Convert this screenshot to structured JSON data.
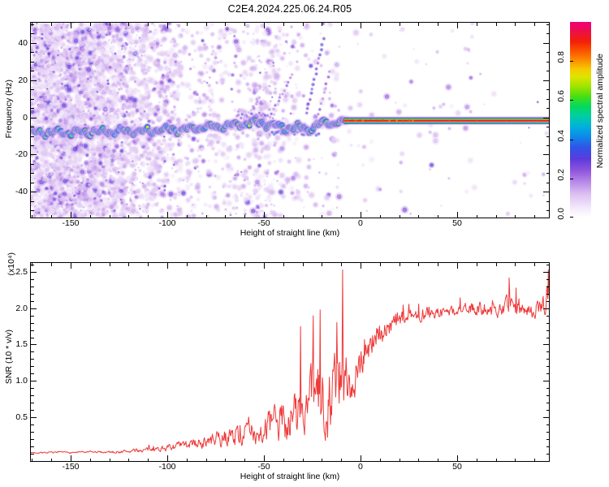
{
  "title": "C2E4.2024.225.06.24.R05",
  "colors": {
    "background": "#ffffff",
    "axis": "#000000",
    "snr_line": "#ee3a3a",
    "colormap_stops": [
      [
        0.0,
        "#ffffff"
      ],
      [
        0.05,
        "#f3e9fb"
      ],
      [
        0.12,
        "#dcc0f2"
      ],
      [
        0.18,
        "#b98ae8"
      ],
      [
        0.24,
        "#9055dd"
      ],
      [
        0.3,
        "#5b3bdd"
      ],
      [
        0.36,
        "#2f55e8"
      ],
      [
        0.42,
        "#0b8fe8"
      ],
      [
        0.47,
        "#00b4d8"
      ],
      [
        0.52,
        "#00cf9f"
      ],
      [
        0.57,
        "#06d95a"
      ],
      [
        0.62,
        "#4ade12"
      ],
      [
        0.67,
        "#9fe400"
      ],
      [
        0.72,
        "#dfe400"
      ],
      [
        0.76,
        "#f8c800"
      ],
      [
        0.8,
        "#fb9200"
      ],
      [
        0.85,
        "#fb5500"
      ],
      [
        0.9,
        "#f32008"
      ],
      [
        0.95,
        "#ee0f45"
      ],
      [
        1.0,
        "#f1007b"
      ]
    ]
  },
  "colorbar": {
    "label": "Normalized spectral amplitude",
    "ticks": [
      0.0,
      0.2,
      0.4,
      0.6,
      0.8
    ],
    "tick_labels": [
      "0.0",
      "0.2",
      "0.4",
      "0.6",
      "0.8"
    ],
    "range": [
      0,
      1
    ]
  },
  "chart_data": [
    {
      "type": "heatmap",
      "name": "spectrogram",
      "xlabel": "Height of straight line (km)",
      "ylabel": "Frequency (Hz)",
      "xlim": [
        -170.6,
        97.5
      ],
      "ylim": [
        -53.8,
        50.8
      ],
      "xticks": {
        "major": [
          -150,
          -100,
          -50,
          0,
          50
        ],
        "labels": [
          "-150",
          "-100",
          "-50",
          "0",
          "50"
        ],
        "minor_step": 10
      },
      "yticks": {
        "major": [
          40,
          20,
          0,
          -20,
          -40
        ],
        "labels": [
          "40",
          "20",
          "0",
          "-20",
          "-40"
        ],
        "minor_step": 5
      },
      "trace_points_km_hz_amp": [
        [
          -170.5,
          -8.2,
          0.72
        ],
        [
          -165,
          -8.0,
          0.62
        ],
        [
          -160,
          -8.3,
          0.66
        ],
        [
          -155,
          -8.0,
          0.7
        ],
        [
          -150,
          -8.4,
          0.6
        ],
        [
          -145,
          -8.1,
          0.56
        ],
        [
          -140,
          -7.8,
          0.66
        ],
        [
          -135,
          -8.0,
          0.6
        ],
        [
          -130,
          -7.6,
          0.7
        ],
        [
          -125,
          -7.8,
          0.6
        ],
        [
          -120,
          -7.4,
          0.85
        ],
        [
          -115,
          -7.6,
          0.6
        ],
        [
          -110,
          -7.2,
          0.62
        ],
        [
          -105,
          -7.0,
          0.66
        ],
        [
          -100,
          -6.8,
          0.7
        ],
        [
          -95,
          -6.5,
          0.6
        ],
        [
          -90,
          -6.2,
          0.74
        ],
        [
          -85,
          -5.8,
          0.66
        ],
        [
          -80,
          -5.4,
          0.62
        ],
        [
          -75,
          -5.0,
          0.8
        ],
        [
          -70,
          -4.5,
          0.66
        ],
        [
          -65,
          -3.8,
          0.7
        ],
        [
          -60,
          -3.2,
          0.74
        ],
        [
          -55,
          -2.8,
          0.7
        ],
        [
          -50,
          -3.2,
          0.64
        ],
        [
          -46,
          -4.2,
          0.62
        ],
        [
          -42,
          -5.0,
          0.66
        ],
        [
          -38,
          -5.6,
          0.62
        ],
        [
          -34,
          -6.0,
          0.66
        ],
        [
          -30,
          -5.2,
          0.7
        ],
        [
          -27,
          -6.2,
          0.74
        ],
        [
          -24,
          -5.0,
          0.7
        ],
        [
          -21,
          -3.8,
          0.76
        ],
        [
          -18,
          -3.0,
          0.8
        ],
        [
          -15,
          -2.6,
          0.85
        ],
        [
          -12,
          -2.9,
          0.82
        ],
        [
          -10,
          -2.2,
          0.88
        ],
        [
          -8,
          -1.9,
          0.92
        ]
      ],
      "flat_line": {
        "x_start": -8.5,
        "x_end": 97.5,
        "freq": -1.8
      },
      "streaks": [
        {
          "from": [
            -28,
            2
          ],
          "to": [
            -19,
            42
          ],
          "dots": 15,
          "amp": 0.22
        },
        {
          "from": [
            -47,
            0
          ],
          "to": [
            -35,
            23
          ],
          "dots": 11,
          "amp": 0.13
        },
        {
          "from": [
            -23,
            -1
          ],
          "to": [
            -16,
            24
          ],
          "dots": 9,
          "amp": 0.16
        },
        {
          "from": [
            -60,
            -1
          ],
          "to": [
            -52,
            10
          ],
          "dots": 7,
          "amp": 0.1
        }
      ],
      "sub_traces": [
        {
          "from": [
            -46,
            -8
          ],
          "to": [
            -22,
            -8.5
          ],
          "amp": 0.28
        },
        {
          "from": [
            -64,
            0.5
          ],
          "to": [
            -48,
            1.5
          ],
          "amp": 0.2
        }
      ],
      "noise_bands_km_count": [
        [
          -170.6,
          -148,
          1500
        ],
        [
          -148,
          -132,
          1050
        ],
        [
          -132,
          -122,
          480
        ],
        [
          -122,
          -108,
          430
        ],
        [
          -108,
          -93,
          310
        ],
        [
          -93,
          -72,
          190
        ],
        [
          -72,
          -55,
          150
        ],
        [
          -55,
          -44,
          200
        ],
        [
          -44,
          -28,
          110
        ],
        [
          -28,
          -10,
          60
        ],
        [
          -10,
          20,
          22
        ],
        [
          20,
          60,
          40
        ],
        [
          60,
          97,
          15
        ]
      ],
      "extra_speckles_km_hz": [
        [
          36,
          -8
        ],
        [
          38,
          5
        ],
        [
          43,
          7
        ],
        [
          46,
          -6
        ],
        [
          57,
          3
        ],
        [
          -16,
          10
        ],
        [
          -13,
          6
        ]
      ]
    },
    {
      "type": "line",
      "name": "snr",
      "xlabel": "Height of straight line (km)",
      "ylabel": "SNR (10 * v/v)",
      "y_scale_label": "(x10⁴)",
      "xlim": [
        -170.6,
        97.5
      ],
      "ylim": [
        -0.1,
        2.62
      ],
      "xticks": {
        "major": [
          -150,
          -100,
          -50,
          0,
          50
        ],
        "labels": [
          "-150",
          "-100",
          "-50",
          "0",
          "50"
        ],
        "minor_step": 10
      },
      "yticks": {
        "major": [
          2.5,
          2.0,
          1.5,
          1.0,
          0.5
        ],
        "labels": [
          "2.5",
          "2.0",
          "1.5",
          "1.0",
          "0.5"
        ],
        "minor_step": 0.1
      },
      "envelope_km_mean_noise": [
        [
          -170.5,
          0.015,
          0.012
        ],
        [
          -150,
          0.018,
          0.015
        ],
        [
          -135,
          0.022,
          0.02
        ],
        [
          -122,
          0.03,
          0.03
        ],
        [
          -112,
          0.05,
          0.04
        ],
        [
          -103,
          0.07,
          0.05
        ],
        [
          -95,
          0.1,
          0.07
        ],
        [
          -88,
          0.13,
          0.09
        ],
        [
          -80,
          0.16,
          0.11
        ],
        [
          -73,
          0.2,
          0.14
        ],
        [
          -66,
          0.25,
          0.17
        ],
        [
          -60,
          0.28,
          0.2
        ],
        [
          -54,
          0.3,
          0.22
        ],
        [
          -48,
          0.36,
          0.28
        ],
        [
          -43,
          0.42,
          0.34
        ],
        [
          -38,
          0.48,
          0.42
        ],
        [
          -33,
          0.55,
          0.5
        ],
        [
          -29,
          0.62,
          0.55
        ],
        [
          -25,
          0.7,
          0.62
        ],
        [
          -21,
          0.75,
          0.65
        ],
        [
          -17,
          0.8,
          0.65
        ],
        [
          -13,
          0.95,
          0.7
        ],
        [
          -10,
          1.05,
          0.8
        ],
        [
          -8,
          0.85,
          0.6
        ],
        [
          -6,
          1.0,
          0.45
        ],
        [
          -4,
          1.05,
          0.4
        ],
        [
          -2,
          1.15,
          0.38
        ],
        [
          0,
          1.3,
          0.35
        ],
        [
          3,
          1.45,
          0.3
        ],
        [
          6,
          1.55,
          0.28
        ],
        [
          10,
          1.65,
          0.24
        ],
        [
          14,
          1.72,
          0.2
        ],
        [
          18,
          1.8,
          0.18
        ],
        [
          22,
          1.86,
          0.15
        ],
        [
          27,
          1.9,
          0.13
        ],
        [
          33,
          1.93,
          0.12
        ],
        [
          40,
          1.95,
          0.11
        ],
        [
          48,
          1.96,
          0.11
        ],
        [
          56,
          1.99,
          0.11
        ],
        [
          64,
          2.0,
          0.12
        ],
        [
          72,
          2.0,
          0.14
        ],
        [
          78,
          2.02,
          0.16
        ],
        [
          84,
          1.97,
          0.13
        ],
        [
          90,
          1.97,
          0.13
        ],
        [
          95,
          2.05,
          0.2
        ],
        [
          97.5,
          2.25,
          0.3
        ]
      ],
      "spikes_km_value": [
        [
          -9.3,
          2.53
        ],
        [
          -20.8,
          1.98
        ],
        [
          -24.5,
          1.9
        ],
        [
          -31,
          1.75
        ],
        [
          77,
          2.42
        ],
        [
          80.5,
          2.28
        ],
        [
          97.3,
          2.53
        ]
      ]
    }
  ]
}
